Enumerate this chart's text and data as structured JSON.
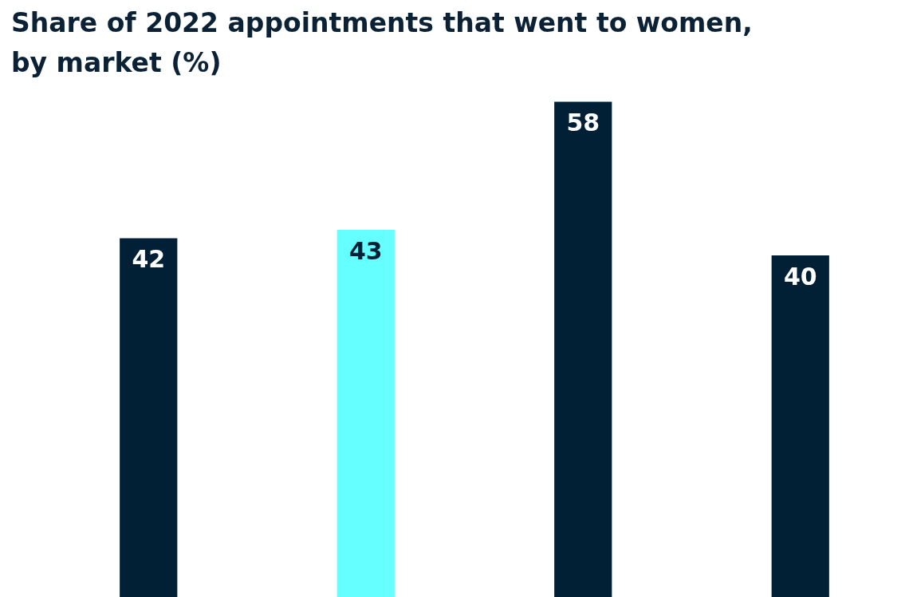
{
  "chart_data": {
    "type": "bar",
    "title": "Share of 2022 appointments that went to women, by market (%)",
    "categories": [
      null,
      null,
      null,
      null
    ],
    "values": [
      42,
      43,
      58,
      40
    ],
    "colors": [
      "#022035",
      "#66ffff",
      "#022035",
      "#022035"
    ],
    "data_labels": true,
    "tick_labels": false
  }
}
